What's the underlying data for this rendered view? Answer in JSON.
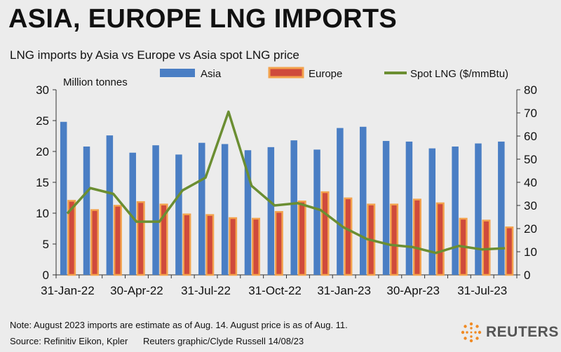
{
  "title": "ASIA, EUROPE LNG IMPORTS",
  "subtitle": "LNG imports by Asia vs Europe vs Asia spot LNG price",
  "note": "Note: August 2023 imports are estimate as of Aug. 14. August price is as of Aug. 11.",
  "source": "Source: Refinitiv Eikon, Kpler",
  "credit": "Reuters graphic/Clyde Russell 14/08/23",
  "logo_text": "REUTERS",
  "colors": {
    "asia": "#4a7ec4",
    "europe_fill": "#cf4a3c",
    "europe_edge": "#f3a24d",
    "spot": "#6b8e32"
  },
  "chart_data": {
    "type": "bar",
    "ylabel": "Million tonnes",
    "ylim": [
      0,
      30
    ],
    "y2lim": [
      0,
      80
    ],
    "yticks": [
      "0",
      "5",
      "10",
      "15",
      "20",
      "25",
      "30"
    ],
    "y2ticks": [
      "0",
      "10",
      "20",
      "30",
      "40",
      "50",
      "60",
      "70",
      "80"
    ],
    "x_tick_labels": [
      {
        "label": "31-Jan-22",
        "index": 0
      },
      {
        "label": "30-Apr-22",
        "index": 3
      },
      {
        "label": "31-Jul-22",
        "index": 6
      },
      {
        "label": "31-Oct-22",
        "index": 9
      },
      {
        "label": "31-Jan-23",
        "index": 12
      },
      {
        "label": "30-Apr-23",
        "index": 15
      },
      {
        "label": "31-Jul-23",
        "index": 18
      }
    ],
    "legend": [
      "Asia",
      "Europe",
      "Spot LNG ($/mmBtu)"
    ],
    "legend_position": "top",
    "categories": [
      "Jan-22",
      "Feb-22",
      "Mar-22",
      "Apr-22",
      "May-22",
      "Jun-22",
      "Jul-22",
      "Aug-22",
      "Sep-22",
      "Oct-22",
      "Nov-22",
      "Dec-22",
      "Jan-23",
      "Feb-23",
      "Mar-23",
      "Apr-23",
      "May-23",
      "Jun-23",
      "Jul-23",
      "Aug-23"
    ],
    "series": [
      {
        "name": "Asia",
        "kind": "bar",
        "axis": "left",
        "values": [
          24.8,
          20.8,
          22.6,
          19.8,
          21.0,
          19.5,
          21.4,
          21.2,
          20.2,
          20.7,
          21.8,
          20.3,
          23.8,
          24.0,
          21.7,
          21.6,
          20.5,
          20.8,
          21.3,
          21.6
        ]
      },
      {
        "name": "Europe",
        "kind": "bar",
        "axis": "left",
        "values": [
          12.0,
          10.5,
          11.2,
          11.8,
          11.4,
          9.8,
          9.7,
          9.2,
          9.1,
          10.2,
          11.9,
          13.4,
          12.4,
          11.4,
          11.4,
          12.2,
          11.6,
          9.1,
          8.8,
          7.7
        ]
      },
      {
        "name": "Spot LNG ($/mmBtu)",
        "kind": "line",
        "axis": "right",
        "values": [
          26.5,
          37.5,
          35.0,
          23.0,
          23.0,
          36.5,
          42.0,
          70.5,
          38.5,
          30.0,
          31.0,
          28.0,
          20.5,
          15.5,
          13.0,
          12.0,
          9.5,
          12.5,
          11.0,
          11.5
        ]
      }
    ]
  }
}
